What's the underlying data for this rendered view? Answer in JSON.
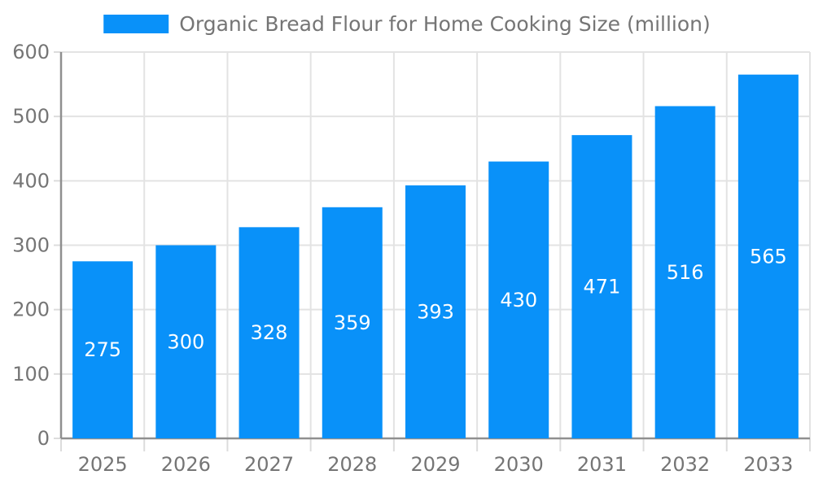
{
  "legend": {
    "label": "Organic Bread Flour for Home Cooking Size (million)"
  },
  "chart_data": {
    "type": "bar",
    "title": "Organic Bread Flour for Home Cooking Size (million)",
    "categories": [
      "2025",
      "2026",
      "2027",
      "2028",
      "2029",
      "2030",
      "2031",
      "2032",
      "2033"
    ],
    "series": [
      {
        "name": "Organic Bread Flour for Home Cooking Size (million)",
        "values": [
          275,
          300,
          328,
          359,
          393,
          430,
          471,
          516,
          565
        ]
      }
    ],
    "xlabel": "",
    "ylabel": "",
    "ylim": [
      0,
      600
    ],
    "yticks": [
      0,
      100,
      200,
      300,
      400,
      500,
      600
    ],
    "grid": true,
    "legend_position": "top-center",
    "value_labels": "inside-center",
    "colors": {
      "bar": "#0991F9",
      "axis_line": "#8F8F8F",
      "grid_line": "#E3E3E3",
      "tick_line": "#DCDCDC",
      "tick_label": "#757575",
      "value_label": "#FFFFFF"
    }
  }
}
